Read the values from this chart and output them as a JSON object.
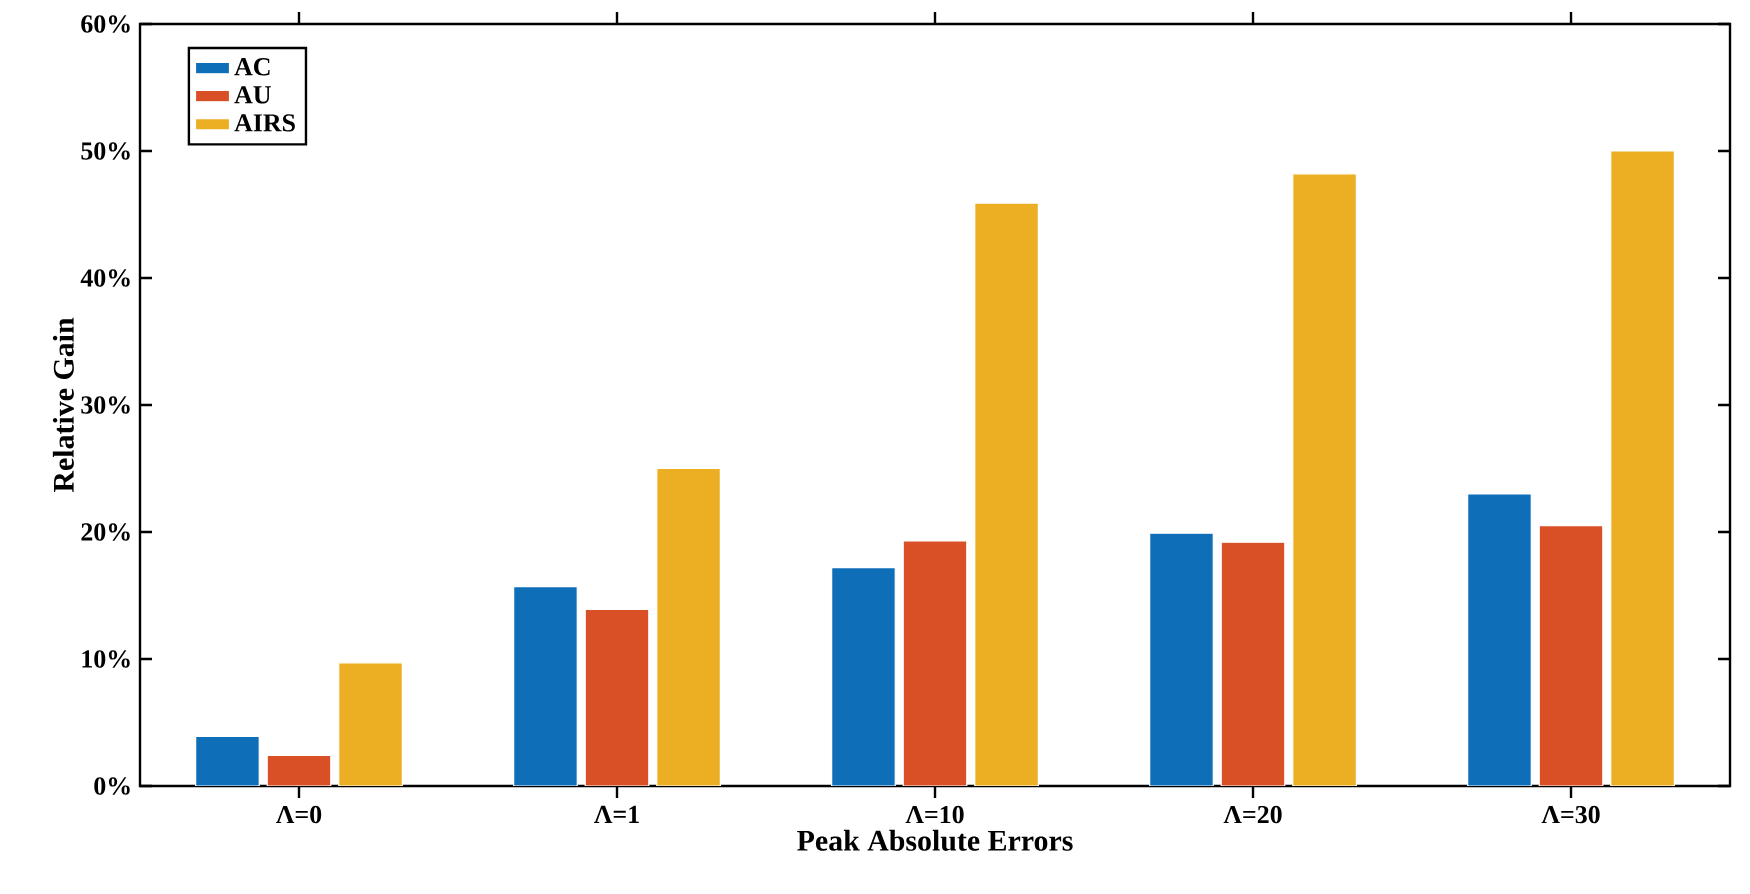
{
  "chart_data": {
    "type": "bar",
    "xlabel": "Peak Absolute Errors",
    "ylabel": "Relative Gain",
    "categories": [
      "Λ=0",
      "Λ=1",
      "Λ=10",
      "Λ=20",
      "Λ=30"
    ],
    "series": [
      {
        "name": "AC",
        "color": "#0f6eb8",
        "values": [
          3.9,
          15.7,
          17.2,
          19.9,
          23.0
        ]
      },
      {
        "name": "AU",
        "color": "#d95027",
        "values": [
          2.4,
          13.9,
          19.3,
          19.2,
          20.5
        ]
      },
      {
        "name": "AIRS",
        "color": "#ecae23",
        "values": [
          9.7,
          25.0,
          45.9,
          48.2,
          50.0
        ]
      }
    ],
    "ylim": [
      0,
      60
    ],
    "yticks": [
      {
        "value": 0,
        "label": "0%"
      },
      {
        "value": 10,
        "label": "10%"
      },
      {
        "value": 20,
        "label": "20%"
      },
      {
        "value": 30,
        "label": "30%"
      },
      {
        "value": 40,
        "label": "40%"
      },
      {
        "value": 50,
        "label": "50%"
      },
      {
        "value": 60,
        "label": "60%"
      }
    ],
    "grid": false,
    "legend": "top left"
  }
}
